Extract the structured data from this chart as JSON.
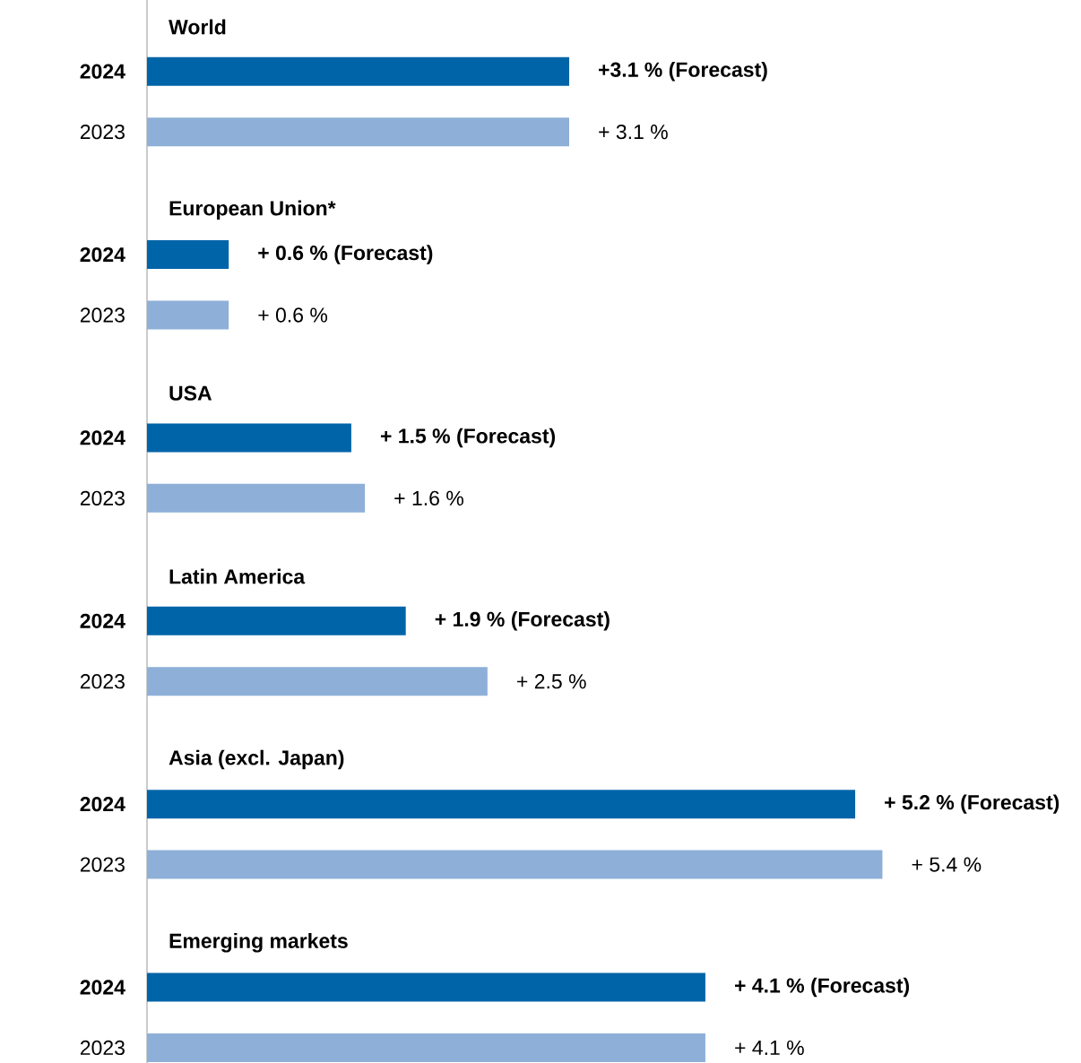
{
  "chart_data": {
    "type": "bar",
    "orientation": "horizontal",
    "categories": [
      "World",
      "European Union*",
      "USA",
      "Latin America",
      "Asia (excl. Japan)",
      "Emerging markets"
    ],
    "series": [
      {
        "name": "2024",
        "color": "#0064a8",
        "values": [
          3.1,
          0.6,
          1.5,
          1.9,
          5.2,
          4.1
        ],
        "value_labels": [
          "+3.1 % (Forecast)",
          "+ 0.6 % (Forecast)",
          "+ 1.5 % (Forecast)",
          "+ 1.9 % (Forecast)",
          "+ 5.2 % (Forecast)",
          "+ 4.1 % (Forecast)"
        ]
      },
      {
        "name": "2023",
        "color": "#8eb0d8",
        "values": [
          3.1,
          0.6,
          1.6,
          2.5,
          5.4,
          4.1
        ],
        "value_labels": [
          "+ 3.1 %",
          "+ 0.6 %",
          "+ 1.6 %",
          "+ 2.5 %",
          "+ 5.4 %",
          "+ 4.1 %"
        ]
      }
    ]
  }
}
